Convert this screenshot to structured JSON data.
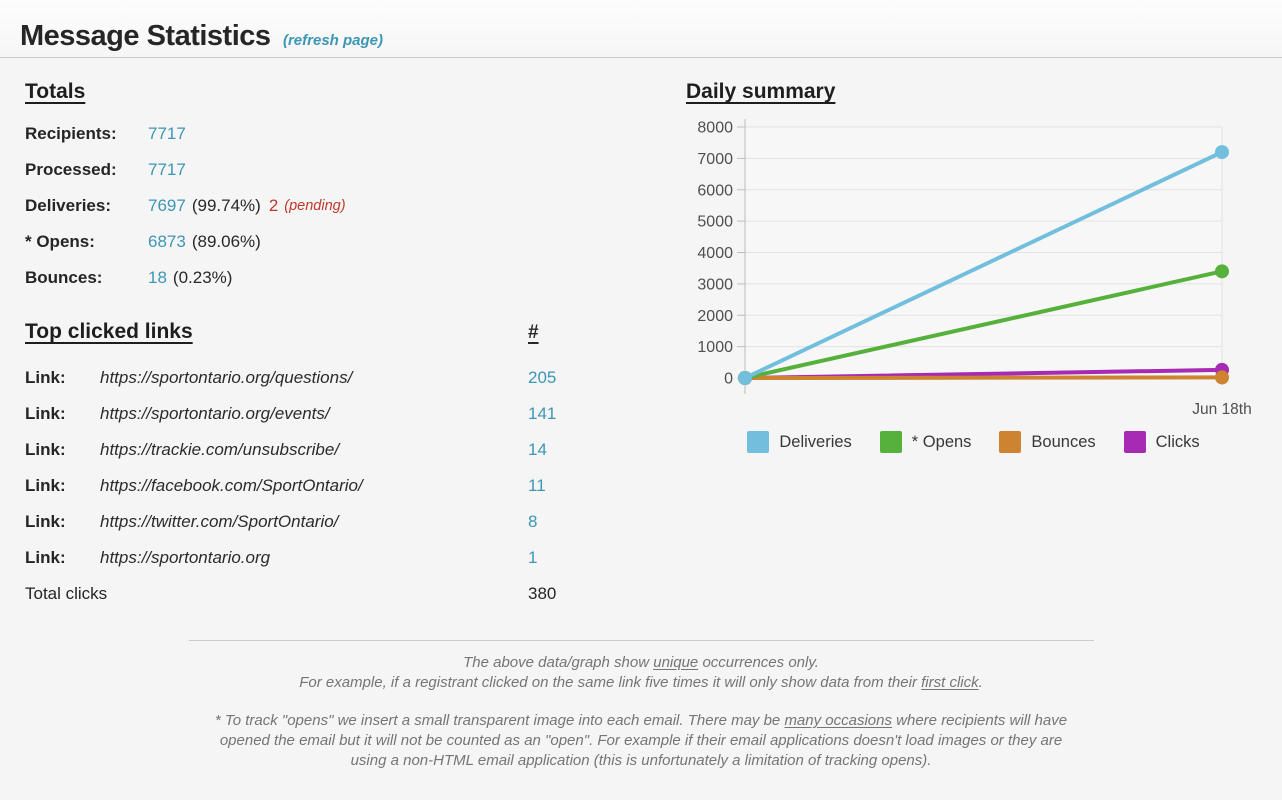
{
  "header": {
    "title": "Message Statistics",
    "refresh_label": "(refresh page)"
  },
  "totals": {
    "heading": "Totals",
    "rows": [
      {
        "label": "Recipients:",
        "value": "7717"
      },
      {
        "label": "Processed:",
        "value": "7717"
      },
      {
        "label": "Deliveries:",
        "value": "7697",
        "percent": "(99.74%)",
        "pending_value": "2",
        "pending_note": "(pending)"
      },
      {
        "label": "* Opens:",
        "value": "6873",
        "percent": "(89.06%)"
      },
      {
        "label": "Bounces:",
        "value": "18",
        "percent": "(0.23%)"
      }
    ]
  },
  "links": {
    "heading": "Top clicked links",
    "count_heading": "#",
    "rows": [
      {
        "label": "Link:",
        "url": "https://sportontario.org/questions/",
        "count": "205"
      },
      {
        "label": "Link:",
        "url": "https://sportontario.org/events/",
        "count": "141"
      },
      {
        "label": "Link:",
        "url": "https://trackie.com/unsubscribe/",
        "count": "14"
      },
      {
        "label": "Link:",
        "url": "https://facebook.com/SportOntario/",
        "count": "11"
      },
      {
        "label": "Link:",
        "url": "https://twitter.com/SportOntario/",
        "count": "8"
      },
      {
        "label": "Link:",
        "url": "https://sportontario.org",
        "count": "1"
      }
    ],
    "total_label": "Total clicks",
    "total_value": "380"
  },
  "chart_section": {
    "heading": "Daily summary"
  },
  "chart_data": {
    "type": "line",
    "title": "Daily summary",
    "x_labels": [
      "",
      "Jun 18th"
    ],
    "ylim": [
      0,
      8000
    ],
    "ytick_step": 1000,
    "grid": true,
    "legend_position": "bottom",
    "series": [
      {
        "name": "Deliveries",
        "color": "#72bfdd",
        "values": [
          0,
          7200
        ]
      },
      {
        "name": "* Opens",
        "color": "#56b13c",
        "values": [
          0,
          3400
        ]
      },
      {
        "name": "Bounces",
        "color": "#cd8330",
        "values": [
          0,
          18
        ]
      },
      {
        "name": "Clicks",
        "color": "#a62ab3",
        "values": [
          0,
          260
        ]
      }
    ],
    "axis_colors": {
      "grid": "#e3e3e3",
      "axis": "#bdbdbd",
      "tick_text": "#4f4f4f",
      "plot_bg": "#f7f7f7"
    }
  },
  "footer": {
    "note1_line1_pre": "The above data/graph show ",
    "note1_line1_u": "unique",
    "note1_line1_post": " occurrences only.",
    "note1_line2_pre": "For example, if a registrant clicked on the same link five times it will only show data from their ",
    "note1_line2_u": "first click",
    "note1_line2_post": ".",
    "note2_pre": "* To track \"opens\" we insert a small transparent image into each email. There may be ",
    "note2_u": "many occasions",
    "note2_post": " where recipients will have opened the email but it will not be counted as an \"open\". For example if their email applications doesn't load images or they are using a non-HTML email application (this is unfortunately a limitation of tracking opens)."
  },
  "colors": {
    "accent_teal": "#3d96b4",
    "pending_red": "#c0392b"
  }
}
